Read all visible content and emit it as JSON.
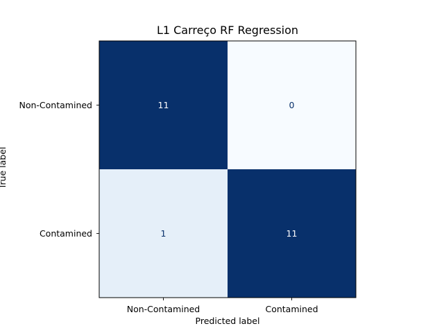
{
  "chart_data": {
    "type": "heatmap",
    "title": "L1 Carreço RF Regression",
    "xlabel": "Predicted label",
    "ylabel": "True label",
    "x_categories": [
      "Non-Contamined",
      "Contamined"
    ],
    "y_categories": [
      "Non-Contamined",
      "Contamined"
    ],
    "values": [
      [
        11,
        0
      ],
      [
        1,
        11
      ]
    ],
    "colormap": "Blues",
    "colorbar": false,
    "grid": false,
    "colors": {
      "low": "#f7fbff",
      "high": "#08306b",
      "text_dark": "#08306b",
      "text_light": "#ffffff"
    }
  }
}
